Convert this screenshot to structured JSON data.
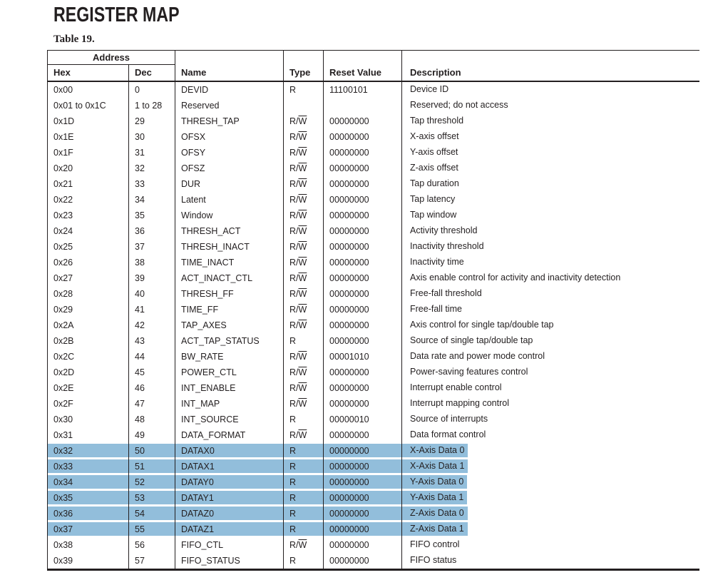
{
  "page": {
    "title": "REGISTER MAP",
    "caption": "Table 19."
  },
  "table": {
    "highlight_color": "#92bedb",
    "header": {
      "address_group": "Address",
      "hex": "Hex",
      "dec": "Dec",
      "name": "Name",
      "type": "Type",
      "reset_value": "Reset Value",
      "description": "Description"
    },
    "rows": [
      {
        "hex": "0x00",
        "dec": "0",
        "name": "DEVID",
        "type": "R",
        "reset": "11100101",
        "desc": "Device ID",
        "highlighted": false
      },
      {
        "hex": "0x01 to 0x1C",
        "dec": "1 to 28",
        "name": "Reserved",
        "type": "",
        "reset": "",
        "desc": "Reserved; do not access",
        "highlighted": false
      },
      {
        "hex": "0x1D",
        "dec": "29",
        "name": "THRESH_TAP",
        "type": "R/W",
        "reset": "00000000",
        "desc": "Tap threshold",
        "highlighted": false
      },
      {
        "hex": "0x1E",
        "dec": "30",
        "name": "OFSX",
        "type": "R/W",
        "reset": "00000000",
        "desc": "X-axis offset",
        "highlighted": false
      },
      {
        "hex": "0x1F",
        "dec": "31",
        "name": "OFSY",
        "type": "R/W",
        "reset": "00000000",
        "desc": "Y-axis offset",
        "highlighted": false
      },
      {
        "hex": "0x20",
        "dec": "32",
        "name": "OFSZ",
        "type": "R/W",
        "reset": "00000000",
        "desc": "Z-axis offset",
        "highlighted": false
      },
      {
        "hex": "0x21",
        "dec": "33",
        "name": "DUR",
        "type": "R/W",
        "reset": "00000000",
        "desc": "Tap duration",
        "highlighted": false
      },
      {
        "hex": "0x22",
        "dec": "34",
        "name": "Latent",
        "type": "R/W",
        "reset": "00000000",
        "desc": "Tap latency",
        "highlighted": false
      },
      {
        "hex": "0x23",
        "dec": "35",
        "name": "Window",
        "type": "R/W",
        "reset": "00000000",
        "desc": "Tap window",
        "highlighted": false
      },
      {
        "hex": "0x24",
        "dec": "36",
        "name": "THRESH_ACT",
        "type": "R/W",
        "reset": "00000000",
        "desc": "Activity threshold",
        "highlighted": false
      },
      {
        "hex": "0x25",
        "dec": "37",
        "name": "THRESH_INACT",
        "type": "R/W",
        "reset": "00000000",
        "desc": "Inactivity threshold",
        "highlighted": false
      },
      {
        "hex": "0x26",
        "dec": "38",
        "name": "TIME_INACT",
        "type": "R/W",
        "reset": "00000000",
        "desc": "Inactivity time",
        "highlighted": false
      },
      {
        "hex": "0x27",
        "dec": "39",
        "name": "ACT_INACT_CTL",
        "type": "R/W",
        "reset": "00000000",
        "desc": "Axis enable control for activity and inactivity detection",
        "highlighted": false
      },
      {
        "hex": "0x28",
        "dec": "40",
        "name": "THRESH_FF",
        "type": "R/W",
        "reset": "00000000",
        "desc": "Free-fall threshold",
        "highlighted": false
      },
      {
        "hex": "0x29",
        "dec": "41",
        "name": "TIME_FF",
        "type": "R/W",
        "reset": "00000000",
        "desc": "Free-fall time",
        "highlighted": false
      },
      {
        "hex": "0x2A",
        "dec": "42",
        "name": "TAP_AXES",
        "type": "R/W",
        "reset": "00000000",
        "desc": "Axis control for single tap/double tap",
        "highlighted": false
      },
      {
        "hex": "0x2B",
        "dec": "43",
        "name": "ACT_TAP_STATUS",
        "type": "R",
        "reset": "00000000",
        "desc": "Source of single tap/double tap",
        "highlighted": false
      },
      {
        "hex": "0x2C",
        "dec": "44",
        "name": "BW_RATE",
        "type": "R/W",
        "reset": "00001010",
        "desc": "Data rate and power mode control",
        "highlighted": false
      },
      {
        "hex": "0x2D",
        "dec": "45",
        "name": "POWER_CTL",
        "type": "R/W",
        "reset": "00000000",
        "desc": "Power-saving features control",
        "highlighted": false
      },
      {
        "hex": "0x2E",
        "dec": "46",
        "name": "INT_ENABLE",
        "type": "R/W",
        "reset": "00000000",
        "desc": "Interrupt enable control",
        "highlighted": false
      },
      {
        "hex": "0x2F",
        "dec": "47",
        "name": "INT_MAP",
        "type": "R/W",
        "reset": "00000000",
        "desc": "Interrupt mapping control",
        "highlighted": false
      },
      {
        "hex": "0x30",
        "dec": "48",
        "name": "INT_SOURCE",
        "type": "R",
        "reset": "00000010",
        "desc": "Source of interrupts",
        "highlighted": false
      },
      {
        "hex": "0x31",
        "dec": "49",
        "name": "DATA_FORMAT",
        "type": "R/W",
        "reset": "00000000",
        "desc": "Data format control",
        "highlighted": false
      },
      {
        "hex": "0x32",
        "dec": "50",
        "name": "DATAX0",
        "type": "R",
        "reset": "00000000",
        "desc": "X-Axis Data 0",
        "highlighted": true
      },
      {
        "hex": "0x33",
        "dec": "51",
        "name": "DATAX1",
        "type": "R",
        "reset": "00000000",
        "desc": "X-Axis Data 1",
        "highlighted": true
      },
      {
        "hex": "0x34",
        "dec": "52",
        "name": "DATAY0",
        "type": "R",
        "reset": "00000000",
        "desc": "Y-Axis Data 0",
        "highlighted": true
      },
      {
        "hex": "0x35",
        "dec": "53",
        "name": "DATAY1",
        "type": "R",
        "reset": "00000000",
        "desc": "Y-Axis Data 1",
        "highlighted": true
      },
      {
        "hex": "0x36",
        "dec": "54",
        "name": "DATAZ0",
        "type": "R",
        "reset": "00000000",
        "desc": "Z-Axis Data 0",
        "highlighted": true
      },
      {
        "hex": "0x37",
        "dec": "55",
        "name": "DATAZ1",
        "type": "R",
        "reset": "00000000",
        "desc": "Z-Axis Data 1",
        "highlighted": true
      },
      {
        "hex": "0x38",
        "dec": "56",
        "name": "FIFO_CTL",
        "type": "R/W",
        "reset": "00000000",
        "desc": "FIFO control",
        "highlighted": false
      },
      {
        "hex": "0x39",
        "dec": "57",
        "name": "FIFO_STATUS",
        "type": "R",
        "reset": "00000000",
        "desc": "FIFO status",
        "highlighted": false
      }
    ]
  }
}
